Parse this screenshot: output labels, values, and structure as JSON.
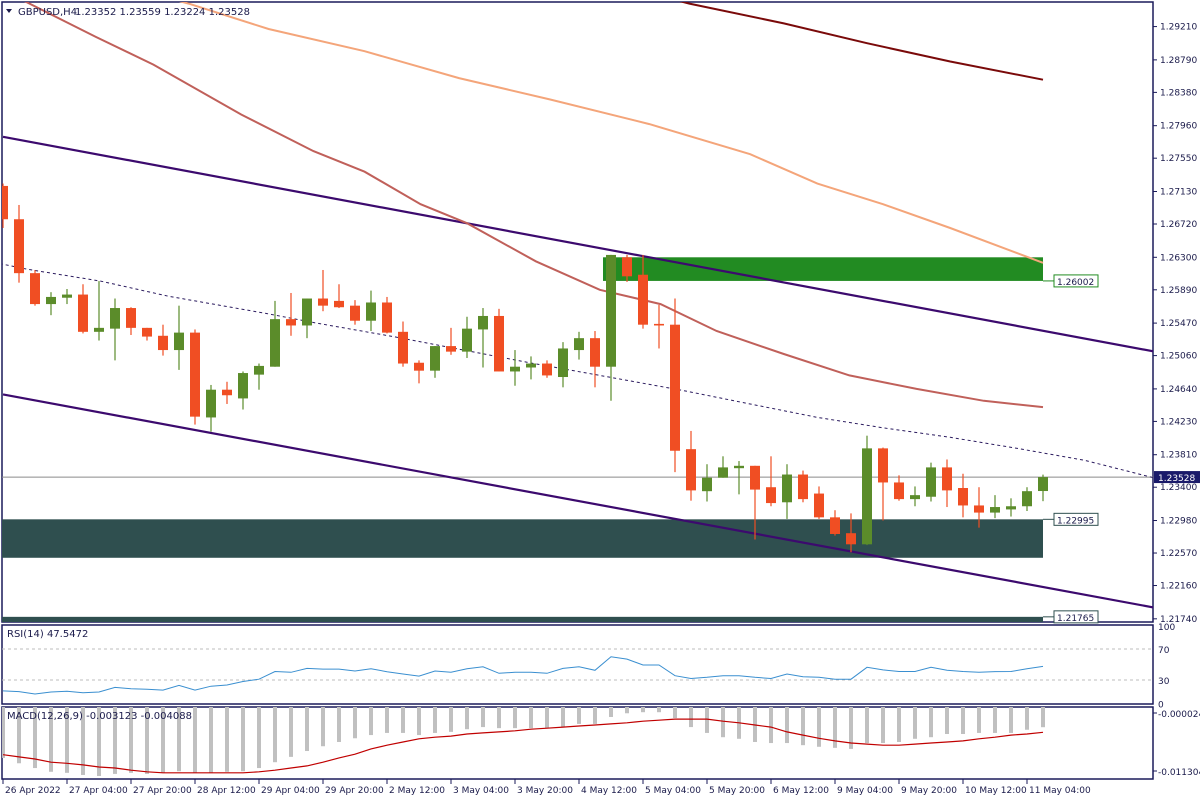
{
  "header": {
    "symbol_timeframe": "GBPUSD,H4",
    "ohlc": "1.23352 1.23559 1.23224 1.23528"
  },
  "colors": {
    "bull": "#5b8c2a",
    "bear": "#f04e23",
    "frame": "#1a1a5a",
    "supply_zone": "#228b22",
    "demand_zone": "#2f4f4f",
    "channel": "#3c0a6e",
    "ma_red": "#c0605a",
    "ma_orange": "#f4a57a",
    "ma_maroon": "#7a0a0a",
    "ma_dashed": "#2a1a5e",
    "rsi": "#3a8fd0",
    "macd_hist": "#c0c0c0",
    "macd_signal": "#c00000",
    "current_price_bg": "#1a1a6a"
  },
  "chart_data": {
    "type": "candlestick",
    "price_range": [
      1.217,
      1.2952
    ],
    "price_ticks": [
      "1.29210",
      "1.28790",
      "1.28380",
      "1.27960",
      "1.27550",
      "1.27130",
      "1.26720",
      "1.26300",
      "1.25890",
      "1.25470",
      "1.25060",
      "1.24640",
      "1.24230",
      "1.23810",
      "1.23400",
      "1.22980",
      "1.22570",
      "1.22160",
      "1.21740"
    ],
    "time_labels": [
      {
        "bar": 0,
        "label": "26 Apr 2022"
      },
      {
        "bar": 4,
        "label": "27 Apr 04:00"
      },
      {
        "bar": 8,
        "label": "27 Apr 20:00"
      },
      {
        "bar": 12,
        "label": "28 Apr 12:00"
      },
      {
        "bar": 16,
        "label": "29 Apr 04:00"
      },
      {
        "bar": 20,
        "label": "29 Apr 20:00"
      },
      {
        "bar": 24,
        "label": "2 May 12:00"
      },
      {
        "bar": 28,
        "label": "3 May 04:00"
      },
      {
        "bar": 32,
        "label": "3 May 20:00"
      },
      {
        "bar": 36,
        "label": "4 May 12:00"
      },
      {
        "bar": 40,
        "label": "5 May 04:00"
      },
      {
        "bar": 44,
        "label": "5 May 20:00"
      },
      {
        "bar": 48,
        "label": "6 May 12:00"
      },
      {
        "bar": 52,
        "label": "9 May 04:00"
      },
      {
        "bar": 56,
        "label": "9 May 20:00"
      },
      {
        "bar": 60,
        "label": "10 May 12:00"
      },
      {
        "bar": 64,
        "label": "11 May 04:00"
      }
    ],
    "candles_ohlc": [
      [
        1.272,
        1.2723,
        1.2667,
        1.2678
      ],
      [
        1.2678,
        1.2696,
        1.2598,
        1.261
      ],
      [
        1.261,
        1.2614,
        1.2569,
        1.2571
      ],
      [
        1.2571,
        1.2586,
        1.2557,
        1.258
      ],
      [
        1.2579,
        1.259,
        1.2571,
        1.2583
      ],
      [
        1.2583,
        1.2596,
        1.2534,
        1.2536
      ],
      [
        1.2536,
        1.26,
        1.2525,
        1.2541
      ],
      [
        1.254,
        1.2578,
        1.25,
        1.2566
      ],
      [
        1.2566,
        1.2567,
        1.2532,
        1.2541
      ],
      [
        1.2541,
        1.2541,
        1.2525,
        1.253
      ],
      [
        1.2531,
        1.2545,
        1.2506,
        1.2513
      ],
      [
        1.2513,
        1.2569,
        1.2488,
        1.2535
      ],
      [
        1.2535,
        1.2539,
        1.2419,
        1.2429
      ],
      [
        1.2428,
        1.2469,
        1.241,
        1.2463
      ],
      [
        1.2463,
        1.2473,
        1.2445,
        1.2456
      ],
      [
        1.2452,
        1.2486,
        1.2438,
        1.2484
      ],
      [
        1.2482,
        1.2496,
        1.2463,
        1.2493
      ],
      [
        1.2492,
        1.2575,
        1.2492,
        1.2552
      ],
      [
        1.2552,
        1.2585,
        1.2531,
        1.2544
      ],
      [
        1.2544,
        1.2578,
        1.2528,
        1.2578
      ],
      [
        1.2578,
        1.2614,
        1.2562,
        1.2569
      ],
      [
        1.2575,
        1.2596,
        1.2566,
        1.2567
      ],
      [
        1.2569,
        1.2576,
        1.2545,
        1.255
      ],
      [
        1.255,
        1.2588,
        1.2537,
        1.2573
      ],
      [
        1.2573,
        1.258,
        1.2534,
        1.2535
      ],
      [
        1.2536,
        1.2549,
        1.2492,
        1.2496
      ],
      [
        1.2497,
        1.25,
        1.2471,
        1.2487
      ],
      [
        1.2487,
        1.2518,
        1.2478,
        1.2518
      ],
      [
        1.2518,
        1.2541,
        1.2507,
        1.2511
      ],
      [
        1.2511,
        1.2555,
        1.2503,
        1.254
      ],
      [
        1.2539,
        1.2566,
        1.2491,
        1.2556
      ],
      [
        1.2556,
        1.2565,
        1.2486,
        1.2486
      ],
      [
        1.2486,
        1.2513,
        1.2468,
        1.2492
      ],
      [
        1.2491,
        1.2505,
        1.2476,
        1.2496
      ],
      [
        1.2496,
        1.25,
        1.2478,
        1.2481
      ],
      [
        1.2479,
        1.2523,
        1.2466,
        1.2515
      ],
      [
        1.2513,
        1.2536,
        1.2501,
        1.2528
      ],
      [
        1.2528,
        1.2537,
        1.2466,
        1.2492
      ],
      [
        1.2492,
        1.2633,
        1.2449,
        1.2633
      ],
      [
        1.263,
        1.2633,
        1.2599,
        1.2606
      ],
      [
        1.2608,
        1.2633,
        1.254,
        1.2545
      ],
      [
        1.2546,
        1.257,
        1.2515,
        1.2544
      ],
      [
        1.2545,
        1.2578,
        1.2359,
        1.2386
      ],
      [
        1.2388,
        1.2411,
        1.2323,
        1.2336
      ],
      [
        1.2335,
        1.2369,
        1.2322,
        1.2352
      ],
      [
        1.2352,
        1.2379,
        1.2352,
        1.2365
      ],
      [
        1.2364,
        1.2373,
        1.2331,
        1.2367
      ],
      [
        1.2367,
        1.2367,
        1.2274,
        1.2337
      ],
      [
        1.234,
        1.2379,
        1.2316,
        1.232
      ],
      [
        1.2321,
        1.2369,
        1.23,
        1.2356
      ],
      [
        1.2356,
        1.2361,
        1.2321,
        1.2325
      ],
      [
        1.2332,
        1.2341,
        1.23,
        1.2302
      ],
      [
        1.2302,
        1.2311,
        1.2279,
        1.2281
      ],
      [
        1.2282,
        1.2307,
        1.2258,
        1.2268
      ],
      [
        1.2268,
        1.2405,
        1.2267,
        1.2389
      ],
      [
        1.2389,
        1.239,
        1.2298,
        1.2346
      ],
      [
        1.2346,
        1.2355,
        1.2323,
        1.2325
      ],
      [
        1.2325,
        1.2341,
        1.2316,
        1.233
      ],
      [
        1.2328,
        1.2371,
        1.2322,
        1.2365
      ],
      [
        1.2365,
        1.2375,
        1.2315,
        1.2336
      ],
      [
        1.2339,
        1.2357,
        1.2302,
        1.2317
      ],
      [
        1.2317,
        1.234,
        1.2289,
        1.2308
      ],
      [
        1.2308,
        1.233,
        1.2301,
        1.2315
      ],
      [
        1.2312,
        1.2326,
        1.2303,
        1.2316
      ],
      [
        1.2316,
        1.234,
        1.231,
        1.2335
      ],
      [
        1.23352,
        1.23559,
        1.23224,
        1.23528
      ]
    ],
    "moving_averages": [
      {
        "id": "ma-maroon",
        "style": "solid",
        "points": [
          [
            40.4,
            1.2963
          ],
          [
            42.9,
            1.295
          ],
          [
            48.8,
            1.2925
          ],
          [
            54,
            1.29
          ],
          [
            59.2,
            1.2877
          ],
          [
            65,
            1.2854
          ]
        ]
      },
      {
        "id": "ma-orange",
        "style": "solid",
        "points": [
          [
            9.8,
            1.296
          ],
          [
            11.6,
            1.295
          ],
          [
            16.6,
            1.2918
          ],
          [
            22.6,
            1.289
          ],
          [
            28.5,
            1.2856
          ],
          [
            34.2,
            1.2829
          ],
          [
            40.4,
            1.2798
          ],
          [
            46.7,
            1.276
          ],
          [
            50.9,
            1.2723
          ],
          [
            55,
            1.2697
          ],
          [
            59.2,
            1.2667
          ],
          [
            65,
            1.2623
          ]
        ]
      },
      {
        "id": "ma-red",
        "style": "solid",
        "points": [
          [
            0.4,
            1.2963
          ],
          [
            1.75,
            1.2949
          ],
          [
            5.8,
            1.2908
          ],
          [
            9.4,
            1.2873
          ],
          [
            14.9,
            1.281
          ],
          [
            19.4,
            1.2764
          ],
          [
            22.6,
            1.2738
          ],
          [
            26.1,
            1.2697
          ],
          [
            29,
            1.2673
          ],
          [
            33.3,
            1.2625
          ],
          [
            37.3,
            1.2589
          ],
          [
            41.1,
            1.2571
          ],
          [
            44.6,
            1.2537
          ],
          [
            48.8,
            1.2508
          ],
          [
            52.9,
            1.2481
          ],
          [
            57.1,
            1.2464
          ],
          [
            61.3,
            1.2449
          ],
          [
            65,
            1.2441
          ]
        ]
      },
      {
        "id": "ma-dashed",
        "style": "dashed",
        "points": [
          [
            -0.2,
            1.2622
          ],
          [
            1.5,
            1.2615
          ],
          [
            6.1,
            1.26
          ],
          [
            10.3,
            1.2581
          ],
          [
            16.5,
            1.2559
          ],
          [
            19.6,
            1.2547
          ],
          [
            24.4,
            1.253
          ],
          [
            27.5,
            1.2518
          ],
          [
            32.9,
            1.2497
          ],
          [
            38.4,
            1.2477
          ],
          [
            42.5,
            1.2462
          ],
          [
            46.7,
            1.2445
          ],
          [
            50.9,
            1.2428
          ],
          [
            55,
            1.2415
          ],
          [
            59.2,
            1.2403
          ],
          [
            63.4,
            1.2389
          ],
          [
            67.6,
            1.2374
          ],
          [
            71.9,
            1.2352
          ]
        ]
      }
    ],
    "trendlines": [
      {
        "id": "channel-upper",
        "from": [
          0,
          1.2782
        ],
        "to": [
          72,
          1.2511
        ]
      },
      {
        "id": "channel-lower",
        "from": [
          0,
          1.2457
        ],
        "to": [
          72,
          1.2188
        ]
      }
    ],
    "zones": [
      {
        "id": "supply-zone",
        "from_bar": 37.5,
        "to_bar": 65,
        "top": 1.263,
        "bottom": 1.26002,
        "label": "1.26002"
      },
      {
        "id": "demand-zone",
        "from_bar": -0.2,
        "to_bar": 65,
        "top": 1.22995,
        "bottom": 1.2251,
        "label": "1.22995"
      },
      {
        "id": "lower-zone",
        "from_bar": -0.2,
        "to_bar": 65,
        "top": 1.21765,
        "bottom": 1.217,
        "label": "1.21765"
      }
    ],
    "current_price": "1.23528",
    "rsi": {
      "title": "RSI(14) 47.5472",
      "levels": [
        "100",
        "70",
        "30",
        "0"
      ],
      "values": [
        16,
        15,
        12,
        14.5,
        15.4,
        13.6,
        14.5,
        20.5,
        18.8,
        18,
        17,
        23,
        17,
        22,
        23.5,
        28,
        31,
        41,
        40,
        45,
        44,
        44,
        41.6,
        44.6,
        40.7,
        37.7,
        35,
        41.6,
        40,
        44.6,
        47,
        38.6,
        40,
        40,
        38.6,
        45,
        47,
        42.5,
        60,
        57,
        49.4,
        49.4,
        35.6,
        32,
        33.5,
        35.6,
        35.6,
        33.5,
        32,
        37.7,
        34.3,
        33.5,
        31,
        31,
        46.4,
        43,
        41,
        41,
        46.4,
        42.5,
        41,
        40,
        40.8,
        41,
        44.6,
        47.5472
      ]
    },
    "macd": {
      "title": "MACD(12,26,9) -0.003123 -0.004088",
      "axis_labels": [
        "-0.000024",
        "-0.011304"
      ],
      "histogram": [
        -0.0089,
        -0.0099,
        -0.0108,
        -0.0115,
        -0.0117,
        -0.0121,
        -0.0123,
        -0.0119,
        -0.0117,
        -0.0119,
        -0.0117,
        -0.0114,
        -0.0117,
        -0.0117,
        -0.0115,
        -0.0114,
        -0.0108,
        -0.0097,
        -0.0087,
        -0.0076,
        -0.0067,
        -0.0059,
        -0.0052,
        -0.0046,
        -0.0042,
        -0.0042,
        -0.0046,
        -0.0042,
        -0.004,
        -0.0035,
        -0.0031,
        -0.0033,
        -0.0033,
        -0.0033,
        -0.0033,
        -0.0031,
        -0.0025,
        -0.0025,
        -0.0012,
        -0.0005,
        -0.0003,
        -0.0003,
        -0.0014,
        -0.0031,
        -0.0042,
        -0.005,
        -0.0053,
        -0.0059,
        -0.0061,
        -0.0061,
        -0.0065,
        -0.0068,
        -0.007,
        -0.0072,
        -0.0061,
        -0.0061,
        -0.0059,
        -0.0053,
        -0.005,
        -0.0044,
        -0.0044,
        -0.0042,
        -0.0042,
        -0.0042,
        -0.0036,
        -0.003123
      ],
      "signal": [
        -0.0083,
        -0.0087,
        -0.0091,
        -0.0097,
        -0.0099,
        -0.0102,
        -0.0106,
        -0.0108,
        -0.0112,
        -0.0115,
        -0.0117,
        -0.0117,
        -0.0117,
        -0.0117,
        -0.0117,
        -0.0117,
        -0.0115,
        -0.0112,
        -0.0108,
        -0.0104,
        -0.0097,
        -0.0089,
        -0.0082,
        -0.0072,
        -0.0065,
        -0.0059,
        -0.0053,
        -0.005,
        -0.0048,
        -0.0044,
        -0.0042,
        -0.004,
        -0.0038,
        -0.0035,
        -0.0033,
        -0.0031,
        -0.0029,
        -0.0027,
        -0.0025,
        -0.0023,
        -0.002,
        -0.0018,
        -0.0016,
        -0.0016,
        -0.0016,
        -0.002,
        -0.0023,
        -0.0027,
        -0.0031,
        -0.004,
        -0.0046,
        -0.0052,
        -0.0057,
        -0.0061,
        -0.0063,
        -0.0065,
        -0.0065,
        -0.0063,
        -0.0061,
        -0.0059,
        -0.0057,
        -0.0053,
        -0.005,
        -0.0046,
        -0.0044,
        -0.004088
      ]
    }
  }
}
